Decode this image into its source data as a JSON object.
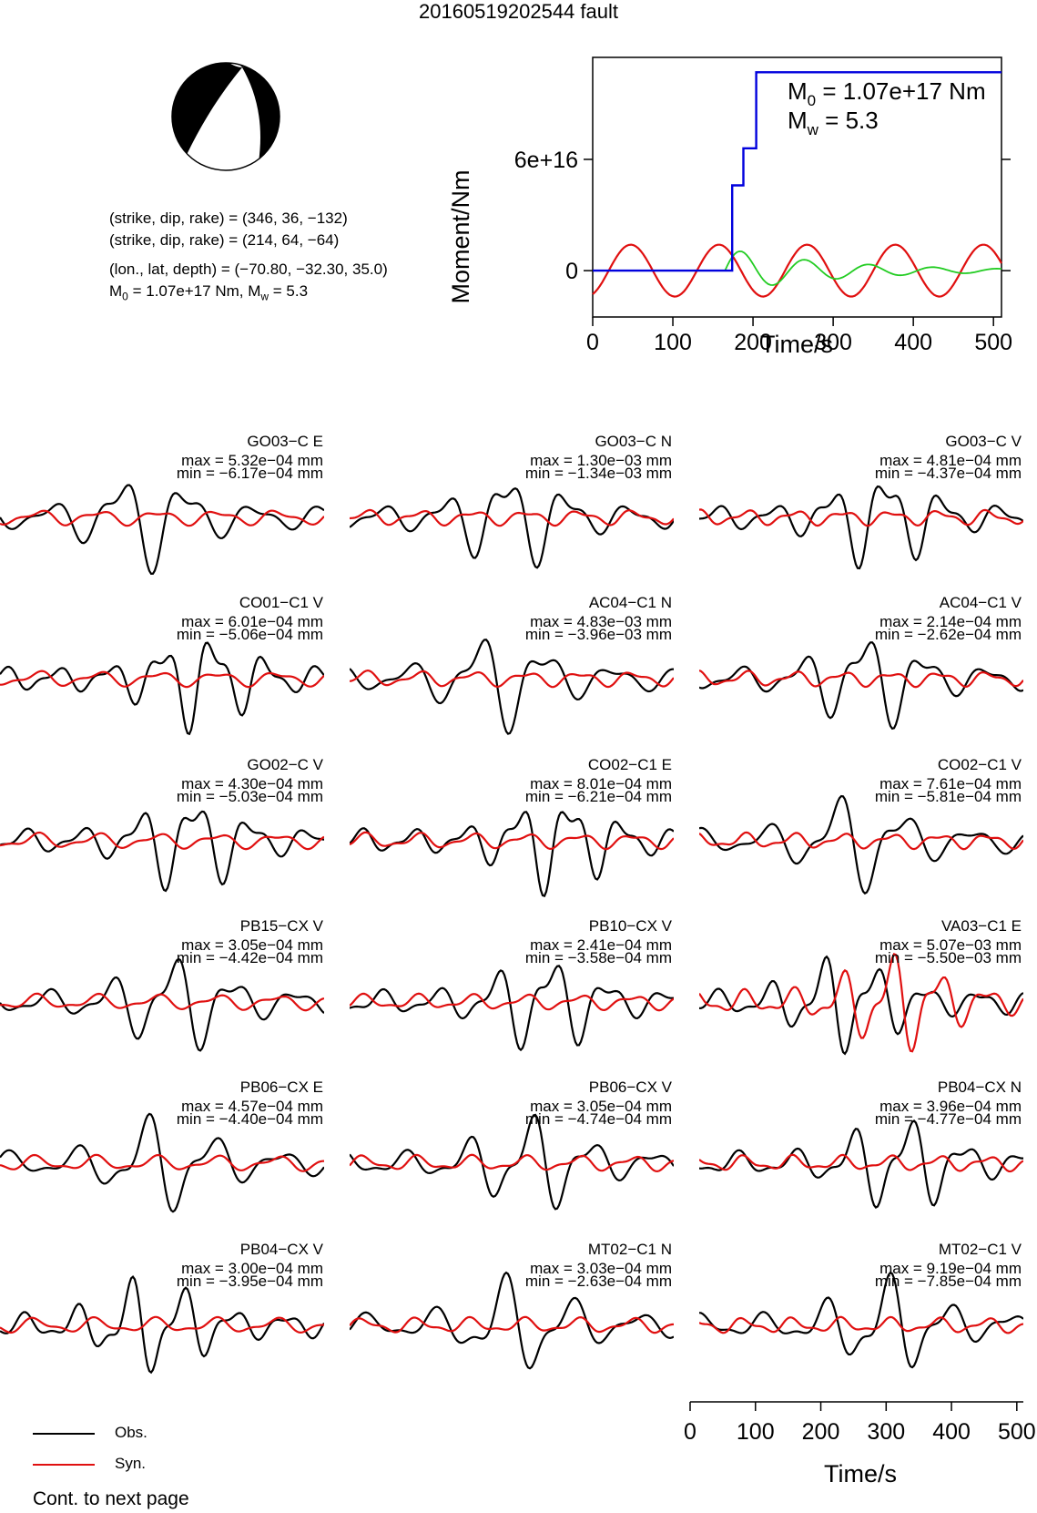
{
  "title": "20160519202544 fault",
  "mechanism": {
    "nodal_plane_1": "(strike, dip, rake) = (346, 36, −132)",
    "nodal_plane_2": "(strike, dip, rake) = (214, 64, −64)",
    "location": "(lon., lat, depth) = (−70.80, −32.30, 35.0)",
    "moment_line_prefix": "M",
    "moment_line_sub": "0",
    "moment_line_mid": " = 1.07e+17 Nm, M",
    "moment_line_sub2": "w",
    "moment_line_suffix": " = 5.3"
  },
  "stf_panel": {
    "ylabel": "Moment/Nm",
    "xlabel": "Time/s",
    "ytick_labels": [
      "0",
      "6e+16"
    ],
    "xtick_labels": [
      "0",
      "100",
      "200",
      "300",
      "400",
      "500"
    ],
    "annotation_m0_sym": "M",
    "annotation_m0_sub": "0",
    "annotation_m0_val": " = 1.07e+17 Nm",
    "annotation_mw_sym": "M",
    "annotation_mw_sub": "w",
    "annotation_mw_val": " = 5.3"
  },
  "traces": [
    {
      "title": "GO03−C E",
      "max": "max = 5.32e−04 mm",
      "min": "min = −6.17e−04 mm"
    },
    {
      "title": "GO03−C N",
      "max": "max = 1.30e−03 mm",
      "min": "min = −1.34e−03 mm"
    },
    {
      "title": "GO03−C V",
      "max": "max = 4.81e−04 mm",
      "min": "min = −4.37e−04 mm"
    },
    {
      "title": "CO01−C1 V",
      "max": "max = 6.01e−04 mm",
      "min": "min = −5.06e−04 mm"
    },
    {
      "title": "AC04−C1 N",
      "max": "max = 4.83e−03 mm",
      "min": "min = −3.96e−03 mm"
    },
    {
      "title": "AC04−C1 V",
      "max": "max = 2.14e−04 mm",
      "min": "min = −2.62e−04 mm"
    },
    {
      "title": "GO02−C V",
      "max": "max = 4.30e−04 mm",
      "min": "min = −5.03e−04 mm"
    },
    {
      "title": "CO02−C1 E",
      "max": "max = 8.01e−04 mm",
      "min": "min = −6.21e−04 mm"
    },
    {
      "title": "CO02−C1 V",
      "max": "max = 7.61e−04 mm",
      "min": "min = −5.81e−04 mm"
    },
    {
      "title": "PB15−CX V",
      "max": "max = 3.05e−04 mm",
      "min": "min = −4.42e−04 mm"
    },
    {
      "title": "PB10−CX V",
      "max": "max = 2.41e−04 mm",
      "min": "min = −3.58e−04 mm"
    },
    {
      "title": "VA03−C1 E",
      "max": "max = 5.07e−03 mm",
      "min": "min = −5.50e−03 mm"
    },
    {
      "title": "PB06−CX E",
      "max": "max = 4.57e−04 mm",
      "min": "min = −4.40e−04 mm"
    },
    {
      "title": "PB06−CX V",
      "max": "max = 3.05e−04 mm",
      "min": "min = −4.74e−04 mm"
    },
    {
      "title": "PB04−CX N",
      "max": "max = 3.96e−04 mm",
      "min": "min = −4.77e−04 mm"
    },
    {
      "title": "PB04−CX V",
      "max": "max = 3.00e−04 mm",
      "min": "min = −3.95e−04 mm"
    },
    {
      "title": "MT02−C1 N",
      "max": "max = 3.03e−04 mm",
      "min": "min = −2.63e−04 mm"
    },
    {
      "title": "MT02−C1 V",
      "max": "max = 9.19e−04 mm",
      "min": "min = −7.85e−04 mm"
    }
  ],
  "bottom_axis": {
    "xlabel": "Time/s",
    "xtick_labels": [
      "0",
      "100",
      "200",
      "300",
      "400",
      "500"
    ]
  },
  "legend": {
    "items": [
      {
        "label": "Obs.",
        "color": "#000000"
      },
      {
        "label": "Syn.",
        "color": "#e01010"
      }
    ]
  },
  "footnote": "Cont. to next page",
  "colors": {
    "observed": "#000000",
    "synthetic": "#e01010",
    "moment": "#0000dd",
    "stf_green": "#22cc22"
  },
  "chart_data": [
    {
      "type": "line",
      "title": "",
      "xlabel": "Time/s",
      "ylabel": "Moment/Nm",
      "xlim": [
        0,
        510
      ],
      "ylim": [
        -2.5e+16,
        1.15e+17
      ],
      "grid": false,
      "series": [
        {
          "name": "",
          "color": "#0000dd",
          "x": [
            0,
            170,
            174,
            174,
            188,
            188,
            196,
            196,
            204,
            204,
            510
          ],
          "y": [
            0,
            0,
            0,
            4.6e+16,
            4.6e+16,
            6.6e+16,
            6.6e+16,
            6.6e+16,
            6.6e+16,
            1.07e+17,
            1.07e+17
          ]
        }
      ],
      "annotations": [
        "M0 = 1.07e+17 Nm",
        "Mw = 5.3"
      ]
    },
    {
      "type": "line",
      "title": "",
      "xlabel": "Time/s",
      "xlim": [
        0,
        510
      ],
      "legend": [
        "Obs.",
        "Syn."
      ],
      "legend_placement": "bottom-left",
      "panels": 18,
      "grid": false
    }
  ]
}
